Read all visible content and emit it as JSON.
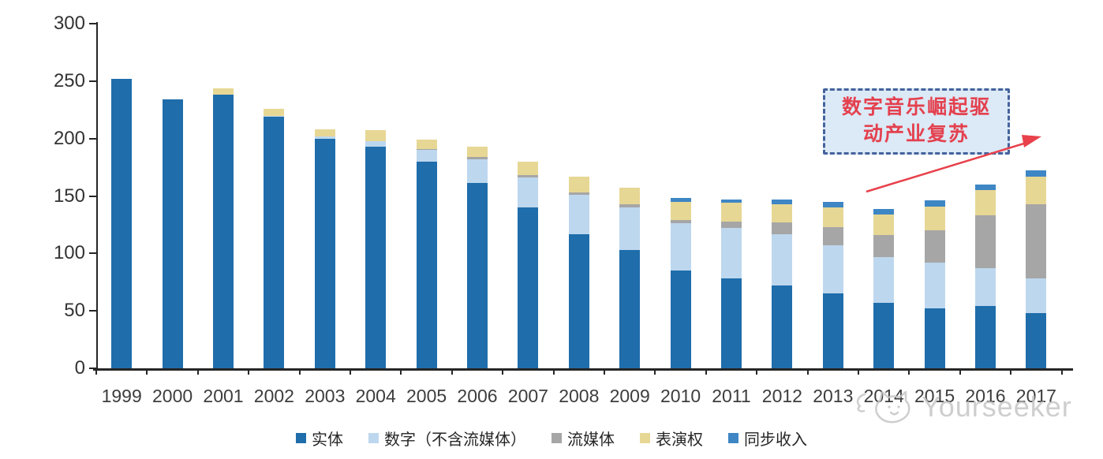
{
  "chart_data": {
    "type": "bar",
    "stacked": true,
    "title": "",
    "categories": [
      "1999",
      "2000",
      "2001",
      "2002",
      "2003",
      "2004",
      "2005",
      "2006",
      "2007",
      "2008",
      "2009",
      "2010",
      "2011",
      "2012",
      "2013",
      "2014",
      "2015",
      "2016",
      "2017"
    ],
    "series": [
      {
        "name": "实体",
        "color": "#1F6DAB",
        "values": [
          252,
          234,
          238,
          219,
          200,
          193,
          180,
          161,
          140,
          117,
          103,
          85,
          78,
          72,
          65,
          57,
          52,
          54,
          48
        ]
      },
      {
        "name": "数字（不含流媒体）",
        "color": "#BDD7EE",
        "values": [
          0,
          0,
          0,
          1,
          2,
          5,
          10,
          21,
          26,
          34,
          37,
          41,
          44,
          45,
          42,
          40,
          40,
          33,
          30
        ]
      },
      {
        "name": "流媒体",
        "color": "#A6A6A6",
        "values": [
          0,
          0,
          0,
          0,
          0,
          0,
          1,
          2,
          2,
          2,
          3,
          3,
          6,
          10,
          16,
          19,
          28,
          46,
          65
        ]
      },
      {
        "name": "表演权",
        "color": "#E7D795",
        "values": [
          0,
          0,
          6,
          6,
          6,
          9,
          8,
          9,
          12,
          14,
          14,
          16,
          16,
          16,
          17,
          18,
          21,
          22,
          24
        ]
      },
      {
        "name": "同步收入",
        "color": "#3E86C4",
        "values": [
          0,
          0,
          0,
          0,
          0,
          0,
          0,
          0,
          0,
          0,
          0,
          3,
          3,
          4,
          5,
          5,
          5,
          5,
          5
        ]
      }
    ],
    "ylim": [
      0,
      300
    ],
    "yticks": [
      0,
      50,
      100,
      150,
      200,
      250,
      300
    ],
    "grid": false,
    "legend_position": "bottom"
  },
  "annotation": {
    "line1": "数字音乐崛起驱",
    "line2": "动产业复苏",
    "box_fill": "#DCE9F6",
    "box_border": "#44639C",
    "text_color": "#E4404E",
    "arrow_color": "#E8414B"
  },
  "watermark": {
    "text": "Yourseeker",
    "logo_icon": "cat-logo",
    "color": "#C6C6C6"
  }
}
